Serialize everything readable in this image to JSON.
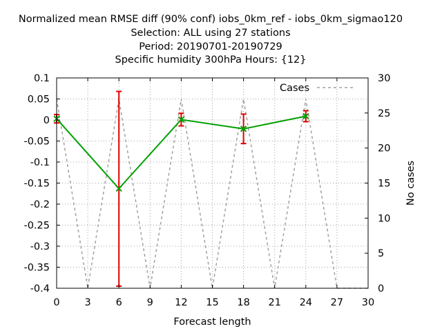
{
  "chart_data": {
    "type": "line",
    "title_lines": [
      "Normalized mean RMSE diff (90% conf) iobs_0km_ref - iobs_0km_sigmao120",
      "Selection: ALL using    27 stations",
      "Period: 20190701-20190729",
      "Specific humidity 300hPa   Hours: {12}"
    ],
    "xlabel": "Forecast length",
    "ylabel": "",
    "y2label": "No cases",
    "xlim": [
      0,
      30
    ],
    "ylim": [
      -0.4,
      0.1
    ],
    "y2lim": [
      0,
      30
    ],
    "xticks": [
      0,
      3,
      6,
      9,
      12,
      15,
      18,
      21,
      24,
      27,
      30
    ],
    "yticks": [
      "0.1",
      "0.05",
      "0",
      "-0.05",
      "-0.1",
      "-0.15",
      "-0.2",
      "-0.25",
      "-0.3",
      "-0.35",
      "-0.4"
    ],
    "y2ticks": [
      "30",
      "25",
      "20",
      "15",
      "10",
      "5",
      "0"
    ],
    "grid": true,
    "legend": {
      "position": "top-right",
      "entries": [
        "Cases"
      ]
    },
    "colors": {
      "diff": "#00a000",
      "errorbar": "#e00000",
      "cases": "#a0a0a0",
      "grid": "#a0a0a0"
    },
    "series": [
      {
        "name": "",
        "axis": "left",
        "x": [
          0,
          6,
          12,
          18,
          24
        ],
        "y": [
          0.003,
          -0.163,
          0.001,
          -0.021,
          0.009
        ],
        "err_low": [
          -0.007,
          -0.395,
          -0.014,
          -0.056,
          -0.004
        ],
        "err_high": [
          0.013,
          0.068,
          0.016,
          0.014,
          0.022
        ]
      },
      {
        "name": "Cases",
        "axis": "right",
        "x": [
          0,
          3,
          6,
          9,
          12,
          15,
          18,
          21,
          24,
          27,
          30
        ],
        "y": [
          27,
          0,
          27,
          0,
          27,
          0,
          27,
          0,
          27,
          0,
          0
        ]
      }
    ]
  }
}
